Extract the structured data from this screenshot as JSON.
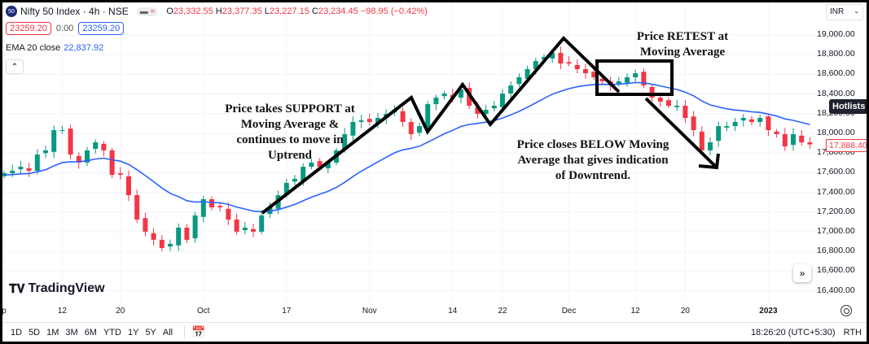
{
  "header": {
    "symbol_badge": "50",
    "title": "Nifty 50 Index · 4h · NSE",
    "pill_a": "▬",
    "pill_b": "≈",
    "open_label": "O",
    "open": "23,332.55",
    "high_label": "H",
    "high": "23,377.35",
    "low_label": "L",
    "low": "23,227.15",
    "close_label": "C",
    "close": "23,234.45",
    "change": "−98.95 (−0.42%)"
  },
  "quote": {
    "sell": "23259.20",
    "spread": "0.00",
    "buy": "23259.20"
  },
  "indicator": {
    "label": "EMA 20 close",
    "value": "22,837.92"
  },
  "currency": "INR",
  "hotlists": "Hotlists",
  "last_price": "17,888.40",
  "brand": "TradingView",
  "timeframes": [
    "1D",
    "5D",
    "1M",
    "3M",
    "6M",
    "YTD",
    "1Y",
    "5Y",
    "All"
  ],
  "clock": "18:26:20 (UTC+5:30)",
  "session": "RTH",
  "annotations": {
    "support": [
      "Price takes SUPPORT at",
      "Moving Average &",
      "continues to move in",
      "Uptrend"
    ],
    "retest": [
      "Price RETEST at",
      "Moving Average"
    ],
    "below": [
      "Price closes BELOW Moving",
      "Average that gives indication",
      "of Downtrend."
    ]
  },
  "colors": {
    "up": "#089981",
    "down": "#f23645",
    "ema": "#2962ff"
  },
  "chart_data": {
    "type": "candlestick",
    "ylim": [
      16300,
      19100
    ],
    "y_ticks": [
      "19,000.00",
      "18,800.00",
      "18,600.00",
      "18,400.00",
      "18,200.00",
      "18,000.00",
      "17,800.00",
      "17,600.00",
      "17,400.00",
      "17,200.00",
      "17,000.00",
      "16,800.00",
      "16,600.00",
      "16,400.00"
    ],
    "y_tick_values": [
      19000,
      18800,
      18600,
      18400,
      18200,
      18000,
      17800,
      17600,
      17400,
      17200,
      17000,
      16800,
      16600,
      16400
    ],
    "x_ticks": [
      "p",
      "12",
      "20",
      "Oct",
      "17",
      "Nov",
      "14",
      "22",
      "Dec",
      "12",
      "20",
      "2023"
    ],
    "x_tick_candle": [
      0,
      7,
      14,
      24,
      34,
      44,
      54,
      60,
      68,
      76,
      82,
      92
    ],
    "series": [
      {
        "name": "EMA 20 close",
        "period": 20
      }
    ],
    "close": [
      17595,
      17620,
      17661,
      17620,
      17785,
      17827,
      18033,
      18033,
      17785,
      17703,
      17827,
      17909,
      17827,
      17579,
      17579,
      17372,
      17124,
      17001,
      16918,
      16835,
      16877,
      17042,
      16918,
      17166,
      17331,
      17248,
      17248,
      17124,
      17001,
      17042,
      17001,
      17166,
      17248,
      17372,
      17496,
      17537,
      17661,
      17703,
      17661,
      17703,
      17827,
      17992,
      18116,
      18132,
      18116,
      18157,
      18198,
      18240,
      18116,
      17992,
      18074,
      18297,
      18363,
      18405,
      18363,
      18446,
      18281,
      18198,
      18240,
      18281,
      18405,
      18487,
      18570,
      18653,
      18735,
      18776,
      18818,
      18710,
      18710,
      18653,
      18611,
      18570,
      18529,
      18487,
      18529,
      18570,
      18611,
      18487,
      18363,
      18322,
      18281,
      18281,
      18157,
      18033,
      17827,
      17909,
      18074,
      18074,
      18116,
      18157,
      18116,
      18157,
      18033,
      17992,
      17868,
      17992,
      17909,
      17888
    ]
  }
}
